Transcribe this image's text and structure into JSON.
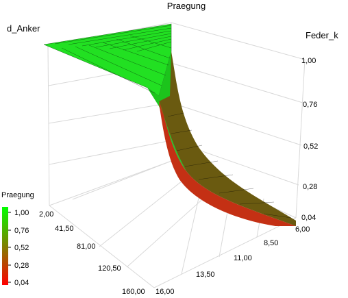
{
  "chart_data": {
    "type": "surface",
    "title": "Praegung",
    "axes": {
      "x": {
        "label": "d_Anker",
        "range": [
          2.0,
          160.0
        ],
        "ticks": [
          "2,00",
          "41,50",
          "81,00",
          "120,50",
          "160,00"
        ]
      },
      "y": {
        "label": "",
        "range": [
          6.0,
          16.0
        ],
        "ticks": [
          "6,00",
          "8,50",
          "11,00",
          "13,50",
          "16,00"
        ]
      },
      "z": {
        "label": "Feder_k",
        "range": [
          0.04,
          1.0
        ],
        "ticks": [
          "0,04",
          "0,28",
          "0,52",
          "0,76",
          "1,00"
        ]
      }
    },
    "colorbar": {
      "title": "Praegung",
      "range": [
        0.04,
        1.0
      ],
      "ticks": [
        "1,00",
        "0,76",
        "0,52",
        "0,28",
        "0,04"
      ],
      "low_color": "#ff0000",
      "high_color": "#00ff00"
    },
    "grid": true,
    "legend_placement": "bottom-left"
  }
}
